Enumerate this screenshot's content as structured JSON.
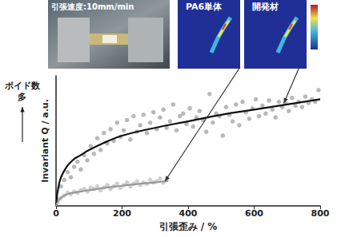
{
  "chart_data": {
    "type": "scatter",
    "x_label": "引張歪み / %",
    "y_label": "Invariant Q / a.u.",
    "xlim": [
      0,
      800
    ],
    "xticks": [
      0,
      200,
      400,
      600,
      800
    ],
    "ylim": [
      0,
      10
    ],
    "grid": false,
    "tick_labels": "x",
    "photo_label": "引張速度:10mm/min",
    "y_note": [
      "ボイド数",
      "多"
    ],
    "annotations": [
      {
        "text": "PA6単体",
        "x": 330,
        "y": 1.9
      },
      {
        "text": "開発材",
        "x": 690,
        "y": 7.9
      }
    ],
    "series": [
      {
        "type": "scatter",
        "color": "#a6a6a6",
        "marker": "circle",
        "x": [
          5,
          15,
          25,
          35,
          45,
          55,
          65,
          75,
          85,
          95,
          105,
          115,
          125,
          135,
          145,
          155,
          165,
          175,
          185,
          195,
          205,
          215,
          225,
          235,
          245,
          255,
          265,
          275,
          285,
          295,
          305,
          315,
          325,
          335,
          345,
          355,
          365,
          375,
          385,
          395,
          405,
          415,
          425,
          435,
          445,
          455,
          465,
          475,
          485,
          495,
          505,
          515,
          525,
          535,
          545,
          555,
          565,
          575,
          585,
          595,
          605,
          615,
          625,
          635,
          645,
          655,
          665,
          675,
          685,
          695,
          705,
          715,
          725,
          735,
          745,
          755,
          765,
          775,
          785,
          795
        ],
        "values": [
          0.5,
          1.5,
          2.0,
          2.6,
          2.2,
          3.0,
          3.4,
          2.8,
          3.9,
          3.5,
          4.6,
          4.0,
          5.2,
          4.3,
          5.6,
          4.8,
          5.9,
          5.0,
          6.4,
          5.3,
          5.8,
          6.6,
          5.1,
          6.9,
          5.7,
          6.2,
          7.0,
          5.6,
          6.4,
          7.2,
          5.9,
          6.8,
          7.4,
          6.0,
          6.5,
          7.8,
          5.8,
          6.9,
          7.1,
          6.3,
          7.5,
          6.1,
          6.8,
          7.3,
          6.6,
          5.7,
          8.6,
          6.4,
          7.1,
          6.9,
          5.4,
          7.6,
          7.0,
          6.5,
          7.8,
          6.2,
          8.0,
          7.2,
          6.7,
          7.5,
          8.2,
          6.9,
          7.7,
          7.1,
          8.1,
          7.4,
          6.8,
          8.0,
          7.6,
          7.9,
          7.3,
          8.3,
          7.7,
          8.0,
          7.6,
          8.4,
          7.9,
          8.2,
          8.0,
          8.9
        ]
      },
      {
        "type": "scatter",
        "color": "#c4c4c4",
        "marker": "circle",
        "x": [
          5,
          15,
          25,
          35,
          45,
          55,
          65,
          75,
          85,
          95,
          105,
          115,
          125,
          135,
          145,
          155,
          165,
          175,
          185,
          195,
          205,
          215,
          225,
          235,
          245,
          255,
          265,
          275,
          285,
          295,
          305,
          315,
          325,
          335
        ],
        "values": [
          0.3,
          0.6,
          0.8,
          1.0,
          0.9,
          1.1,
          1.0,
          1.2,
          1.3,
          1.1,
          1.4,
          1.3,
          1.5,
          1.2,
          1.4,
          1.6,
          1.3,
          1.5,
          1.7,
          1.4,
          1.6,
          1.8,
          1.5,
          1.7,
          1.9,
          1.6,
          1.8,
          1.7,
          2.0,
          1.8,
          1.9,
          2.1,
          1.8,
          2.0
        ]
      },
      {
        "type": "line",
        "color": "#111111",
        "line_style": "solid",
        "x": [
          0,
          10,
          25,
          50,
          75,
          100,
          150,
          200,
          300,
          400,
          500,
          600,
          700,
          800
        ],
        "values": [
          0,
          1.8,
          2.7,
          3.5,
          3.9,
          4.3,
          4.9,
          5.4,
          6.0,
          6.5,
          7.0,
          7.4,
          7.8,
          8.2
        ]
      },
      {
        "type": "line",
        "color": "#999999",
        "line_style": "solid",
        "x": [
          0,
          10,
          25,
          50,
          100,
          150,
          200,
          250,
          300,
          340
        ],
        "values": [
          0,
          0.5,
          0.8,
          1.0,
          1.2,
          1.4,
          1.55,
          1.7,
          1.8,
          1.9
        ]
      }
    ]
  }
}
